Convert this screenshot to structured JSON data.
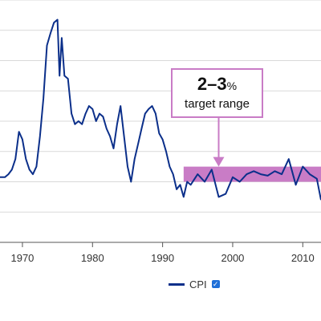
{
  "chart_data": {
    "type": "line",
    "xlim": [
      1966.8,
      2012.6
    ],
    "ylim": [
      -2,
      14
    ],
    "x_ticks": [
      {
        "value": 1970,
        "label": "1970"
      },
      {
        "value": 1980,
        "label": "1980"
      },
      {
        "value": 1990,
        "label": "1990"
      },
      {
        "value": 2000,
        "label": "2000"
      },
      {
        "value": 2010,
        "label": "2010"
      }
    ],
    "y_grid": [
      0,
      2,
      4,
      6,
      8,
      10,
      12,
      14
    ],
    "grid": true,
    "legend_position": "bottom",
    "series": [
      {
        "name": "CPI",
        "color": "#0b2f8a",
        "x": [
          1966.8,
          1967.5,
          1968.0,
          1968.5,
          1969.0,
          1969.5,
          1970.0,
          1970.5,
          1971.0,
          1971.5,
          1972.0,
          1972.5,
          1973.0,
          1973.5,
          1974.0,
          1974.5,
          1975.0,
          1975.3,
          1975.6,
          1976.0,
          1976.5,
          1977.0,
          1977.5,
          1978.0,
          1978.5,
          1979.0,
          1979.5,
          1980.0,
          1980.5,
          1981.0,
          1981.5,
          1982.0,
          1982.5,
          1983.0,
          1983.5,
          1984.0,
          1984.5,
          1985.0,
          1985.5,
          1986.0,
          1986.5,
          1987.0,
          1987.5,
          1988.0,
          1988.5,
          1989.0,
          1989.5,
          1990.0,
          1990.5,
          1991.0,
          1991.5,
          1992.0,
          1992.5,
          1993.0,
          1993.5,
          1994.0,
          1995.0,
          1996.0,
          1997.0,
          1998.0,
          1999.0,
          2000.0,
          2001.0,
          2002.0,
          2003.0,
          2004.0,
          2005.0,
          2006.0,
          2007.0,
          2008.0,
          2009.0,
          2010.0,
          2011.0,
          2012.0,
          2012.6
        ],
        "values": [
          2.3,
          2.3,
          2.5,
          2.8,
          3.5,
          5.3,
          4.8,
          3.5,
          2.8,
          2.5,
          3.0,
          5.0,
          7.5,
          11.0,
          11.8,
          12.5,
          12.7,
          9.0,
          11.5,
          9.0,
          8.8,
          6.5,
          5.8,
          6.0,
          5.8,
          6.5,
          7.0,
          6.8,
          6.0,
          6.5,
          6.3,
          5.5,
          5.0,
          4.2,
          5.8,
          7.0,
          5.0,
          3.0,
          2.0,
          3.5,
          4.5,
          5.5,
          6.5,
          6.8,
          7.0,
          6.5,
          5.2,
          4.8,
          4.0,
          3.0,
          2.5,
          1.5,
          1.8,
          1.0,
          2.0,
          1.8,
          2.5,
          2.0,
          2.8,
          1.0,
          1.2,
          2.3,
          2.0,
          2.5,
          2.7,
          2.5,
          2.4,
          2.7,
          2.5,
          3.5,
          1.8,
          3.0,
          2.5,
          2.2,
          0.8
        ]
      }
    ],
    "bands": [
      {
        "x": [
          1993.0,
          2012.6
        ],
        "y": [
          2,
          3
        ],
        "color": "#c97cc6"
      }
    ],
    "annotations": [
      {
        "big": "2–3",
        "unit": "%",
        "text": "target range",
        "arrow_to": [
          1998.0,
          3.0
        ]
      }
    ]
  }
}
